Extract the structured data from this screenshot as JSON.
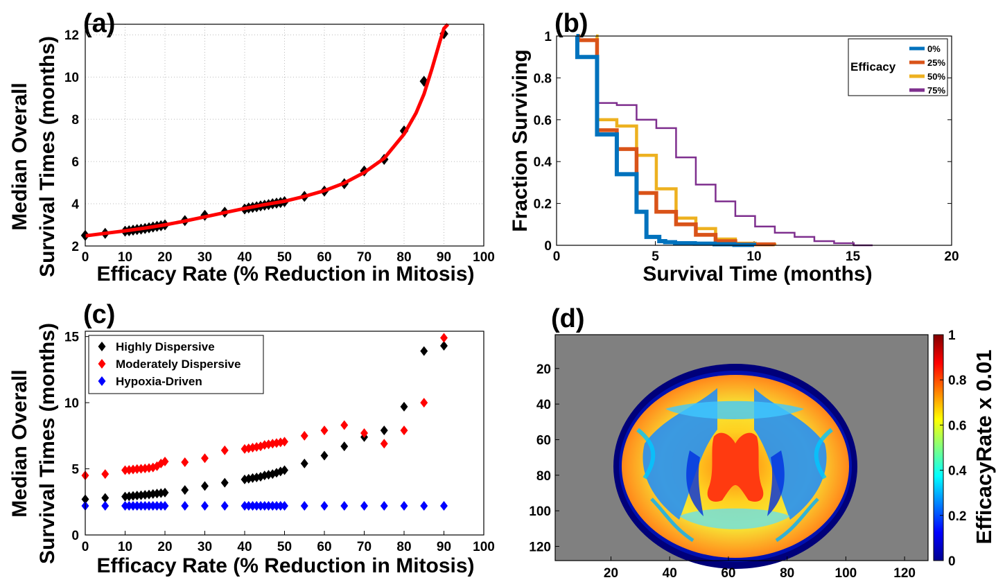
{
  "chart_data": [
    {
      "panel": "(a)",
      "type": "scatter",
      "xlabel": "Efficacy Rate (% Reduction in Mitosis)",
      "ylabel": [
        "Median Overall",
        "Survival Times (months)"
      ],
      "xlim": [
        0,
        100
      ],
      "ylim": [
        2,
        12.5
      ],
      "xticks": [
        0,
        10,
        20,
        30,
        40,
        50,
        60,
        70,
        80,
        90,
        100
      ],
      "yticks": [
        2,
        4,
        6,
        8,
        10,
        12
      ],
      "grid": true,
      "series": [
        {
          "marker": "diamond",
          "color": "#000000",
          "x": [
            0,
            5,
            10,
            11,
            12,
            13,
            14,
            15,
            16,
            17,
            18,
            19,
            20,
            25,
            30,
            35,
            40,
            41,
            42,
            43,
            44,
            45,
            46,
            47,
            48,
            49,
            50,
            55,
            60,
            65,
            70,
            75,
            80,
            85,
            90
          ],
          "y": [
            2.5,
            2.6,
            2.7,
            2.72,
            2.75,
            2.78,
            2.8,
            2.83,
            2.86,
            2.9,
            2.93,
            2.96,
            3.0,
            3.2,
            3.45,
            3.6,
            3.75,
            3.8,
            3.83,
            3.86,
            3.9,
            3.93,
            3.96,
            4.0,
            4.03,
            4.06,
            4.1,
            4.35,
            4.6,
            4.95,
            5.55,
            6.1,
            7.45,
            9.8,
            12.05
          ]
        },
        {
          "type": "line",
          "color": "#ff0000",
          "x": [
            0,
            5,
            10,
            15,
            20,
            25,
            30,
            35,
            40,
            45,
            50,
            55,
            60,
            65,
            70,
            75,
            80,
            83,
            85,
            87,
            89,
            90,
            91
          ],
          "y": [
            2.48,
            2.6,
            2.72,
            2.85,
            3.0,
            3.18,
            3.38,
            3.58,
            3.78,
            3.96,
            4.12,
            4.35,
            4.62,
            4.98,
            5.48,
            6.15,
            7.3,
            8.3,
            9.2,
            10.4,
            11.7,
            12.3,
            12.5
          ]
        }
      ]
    },
    {
      "panel": "(b)",
      "type": "line",
      "step": true,
      "xlabel": "Survival Time (months)",
      "ylabel": "Fraction Surviving",
      "xlim": [
        0,
        20
      ],
      "ylim": [
        0,
        1
      ],
      "xticks": [
        0,
        5,
        10,
        15,
        20
      ],
      "yticks": [
        0,
        0.2,
        0.4,
        0.6,
        0.8,
        1
      ],
      "legend": {
        "title": "Efficacy",
        "position": "top-right"
      },
      "series": [
        {
          "name": "0%",
          "color": "#0072bd",
          "width": 6,
          "x": [
            1,
            1.05,
            1.1,
            1.15,
            2,
            2.05,
            3,
            3.05,
            4,
            4.05,
            4.5,
            4.55,
            5,
            5.2,
            5.5,
            6,
            7,
            8,
            9,
            10
          ],
          "y": [
            1,
            0.9,
            0.9,
            0.9,
            0.9,
            0.53,
            0.53,
            0.34,
            0.34,
            0.16,
            0.16,
            0.04,
            0.04,
            0.02,
            0.015,
            0.01,
            0.008,
            0.005,
            0.002,
            0
          ]
        },
        {
          "name": "25%",
          "color": "#d95319",
          "width": 5.5,
          "x": [
            1,
            1.1,
            2,
            2.05,
            3,
            3.05,
            4,
            4.05,
            5,
            5.05,
            6,
            6.05,
            7,
            7.05,
            8,
            8.05,
            9,
            9.05,
            10,
            11
          ],
          "y": [
            1,
            0.98,
            0.98,
            0.55,
            0.55,
            0.46,
            0.46,
            0.25,
            0.25,
            0.16,
            0.16,
            0.1,
            0.1,
            0.05,
            0.05,
            0.02,
            0.02,
            0.005,
            0.005,
            0
          ]
        },
        {
          "name": "50%",
          "color": "#edb120",
          "width": 4.5,
          "x": [
            2,
            2.05,
            3,
            3.05,
            4,
            4.05,
            5,
            5.05,
            6,
            6.05,
            7,
            7.05,
            8,
            8.05,
            9,
            9.05,
            10,
            10.05,
            11,
            11.05
          ],
          "y": [
            1,
            0.6,
            0.6,
            0.57,
            0.57,
            0.43,
            0.43,
            0.27,
            0.27,
            0.13,
            0.13,
            0.08,
            0.08,
            0.03,
            0.03,
            0.01,
            0.01,
            0.003,
            0.003,
            0
          ]
        },
        {
          "name": "75%",
          "color": "#7e2f8e",
          "width": 2.5,
          "x": [
            2,
            2.05,
            3,
            3.05,
            4,
            4.05,
            5,
            5.05,
            6,
            6.05,
            7,
            7.05,
            8,
            8.05,
            9,
            9.05,
            10,
            10.05,
            11,
            11.05,
            12,
            12.05,
            13,
            13.05,
            14,
            14.05,
            15,
            15.05,
            16
          ],
          "y": [
            1,
            0.68,
            0.68,
            0.67,
            0.67,
            0.6,
            0.6,
            0.56,
            0.56,
            0.42,
            0.42,
            0.29,
            0.29,
            0.21,
            0.21,
            0.14,
            0.14,
            0.09,
            0.09,
            0.06,
            0.06,
            0.04,
            0.04,
            0.02,
            0.02,
            0.01,
            0.01,
            0,
            0
          ]
        }
      ]
    },
    {
      "panel": "(c)",
      "type": "scatter",
      "xlabel": "Efficacy Rate (% Reduction in Mitosis)",
      "ylabel": [
        "Median Overall",
        "Survival Times (months)"
      ],
      "xlim": [
        0,
        100
      ],
      "ylim": [
        0,
        15.4
      ],
      "xticks": [
        0,
        10,
        20,
        30,
        40,
        50,
        60,
        70,
        80,
        90,
        100
      ],
      "yticks": [
        0,
        5,
        10,
        15
      ],
      "legend": {
        "position": "top-left"
      },
      "x": [
        0,
        5,
        10,
        11,
        12,
        13,
        14,
        15,
        16,
        17,
        18,
        19,
        20,
        25,
        30,
        35,
        40,
        41,
        42,
        43,
        44,
        45,
        46,
        47,
        48,
        49,
        50,
        55,
        60,
        65,
        70,
        75,
        80,
        85,
        90
      ],
      "series": [
        {
          "name": "Highly Dispersive",
          "color": "#000000",
          "values": [
            2.7,
            2.8,
            2.9,
            2.92,
            2.95,
            2.98,
            3.0,
            3.03,
            3.06,
            3.1,
            3.13,
            3.16,
            3.2,
            3.4,
            3.7,
            3.95,
            4.2,
            4.25,
            4.3,
            4.35,
            4.4,
            4.5,
            4.55,
            4.6,
            4.7,
            4.8,
            4.9,
            5.4,
            6.0,
            6.7,
            7.4,
            7.9,
            9.7,
            13.9,
            14.3
          ]
        },
        {
          "name": "Moderately Dispersive",
          "color": "#ff0000",
          "values": [
            4.5,
            4.6,
            4.9,
            4.92,
            4.95,
            4.98,
            5.0,
            5.03,
            5.06,
            5.1,
            5.2,
            5.4,
            5.55,
            5.5,
            5.8,
            6.4,
            6.5,
            6.55,
            6.6,
            6.65,
            6.7,
            6.8,
            6.85,
            6.9,
            6.95,
            7.0,
            7.05,
            7.5,
            7.9,
            8.3,
            7.7,
            6.9,
            7.9,
            10.0,
            14.9
          ]
        },
        {
          "name": "Hypoxia-Driven",
          "color": "#0000ff",
          "values": [
            2.2,
            2.2,
            2.2,
            2.2,
            2.2,
            2.2,
            2.2,
            2.2,
            2.2,
            2.2,
            2.2,
            2.2,
            2.2,
            2.2,
            2.2,
            2.2,
            2.2,
            2.2,
            2.2,
            2.2,
            2.2,
            2.2,
            2.2,
            2.2,
            2.2,
            2.2,
            2.2,
            2.2,
            2.2,
            2.2,
            2.2,
            2.2,
            2.2,
            2.2,
            2.2
          ]
        }
      ]
    },
    {
      "panel": "(d)",
      "type": "heatmap",
      "xticks": [
        20,
        40,
        60,
        80,
        100,
        120
      ],
      "yticks": [
        20,
        40,
        60,
        80,
        100,
        120
      ],
      "xlim": [
        1,
        128
      ],
      "ylim": [
        1,
        128
      ],
      "colorbar": {
        "label": "EfficacyRate x 0.01",
        "ticks": [
          0,
          0.2,
          0.4,
          0.6,
          0.8,
          1
        ],
        "range": [
          0,
          1
        ],
        "colormap": "jet"
      },
      "background_color": "#808080"
    }
  ]
}
